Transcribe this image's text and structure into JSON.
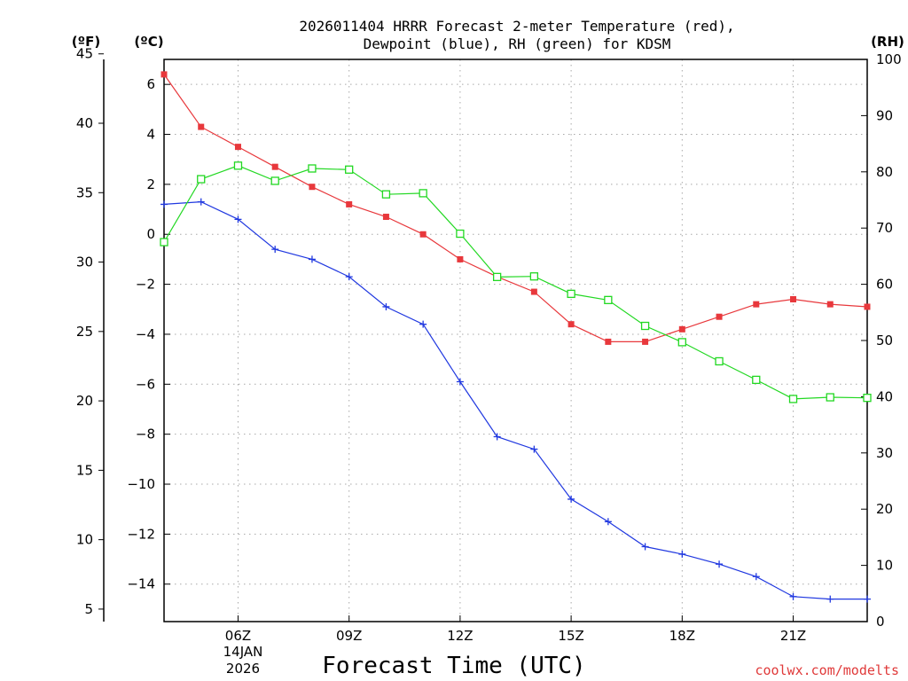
{
  "chart_data": {
    "type": "line",
    "title_line1": "2026011404 HRRR Forecast 2-meter Temperature (red),",
    "title_line2": "Dewpoint (blue), RH (green) for KDSM",
    "xlabel": "Forecast Time (UTC)",
    "credit": "coolwx.com/modelts",
    "date_label_line1": "14JAN",
    "date_label_line2": "2026",
    "unit_left_outer": "(ºF)",
    "unit_left_inner": "(ºC)",
    "unit_right": "(RH)",
    "x_hours": [
      3,
      4,
      5,
      6,
      7,
      8,
      9,
      10,
      11,
      12,
      13,
      14,
      15,
      16,
      17,
      18,
      19,
      20,
      21,
      22
    ],
    "xlim": [
      3,
      22
    ],
    "x_tick_hours": [
      5,
      8,
      11,
      14,
      17,
      20
    ],
    "x_tick_labels": [
      "06Z",
      "09Z",
      "12Z",
      "15Z",
      "18Z",
      "21Z"
    ],
    "celsius_ylim": [
      -15.5,
      7.0
    ],
    "celsius_ticks": [
      6,
      4,
      2,
      0,
      -2,
      -4,
      -6,
      -8,
      -10,
      -12,
      -14
    ],
    "celsius_tick_labels": [
      "6",
      "4",
      "2",
      "0",
      "−2",
      "−4",
      "−6",
      "−8",
      "−10",
      "−12",
      "−14"
    ],
    "fahrenheit_ticks": [
      45,
      40,
      35,
      30,
      25,
      20,
      15,
      10,
      5
    ],
    "fahrenheit_tick_labels": [
      "45",
      "40",
      "35",
      "30",
      "25",
      "20",
      "15",
      "10",
      "5"
    ],
    "rh_ylim": [
      0,
      100
    ],
    "rh_ticks": [
      100,
      90,
      80,
      70,
      60,
      50,
      40,
      30,
      20,
      10,
      0
    ],
    "rh_tick_labels": [
      "100",
      "90",
      "80",
      "70",
      "60",
      "50",
      "40",
      "30",
      "20",
      "10",
      "0"
    ],
    "series": [
      {
        "name": "Temperature",
        "color": "#e8383c",
        "marker": "filled-square",
        "axis": "celsius",
        "values": [
          6.4,
          4.3,
          3.5,
          2.7,
          1.9,
          1.2,
          0.7,
          0.0,
          -1.0,
          -1.7,
          -2.3,
          -3.6,
          -4.3,
          -4.3,
          -3.8,
          -3.3,
          -2.8,
          -2.6,
          -2.8,
          -2.9
        ]
      },
      {
        "name": "Dewpoint",
        "color": "#2038e0",
        "marker": "plus",
        "axis": "celsius",
        "values": [
          1.2,
          1.3,
          0.6,
          -0.6,
          -1.0,
          -1.7,
          -2.9,
          -3.6,
          -5.9,
          -8.1,
          -8.6,
          -10.6,
          -11.5,
          -12.5,
          -12.8,
          -13.2,
          -13.7,
          -14.5,
          -14.6,
          -14.6
        ]
      },
      {
        "name": "RH",
        "color": "#22d822",
        "marker": "open-square",
        "axis": "rh",
        "values": [
          67.5,
          78.7,
          81.1,
          78.4,
          80.6,
          80.4,
          76.0,
          76.2,
          69.0,
          61.3,
          61.4,
          58.3,
          57.2,
          52.6,
          49.7,
          46.3,
          43.0,
          39.6,
          39.9,
          39.8
        ]
      }
    ]
  }
}
